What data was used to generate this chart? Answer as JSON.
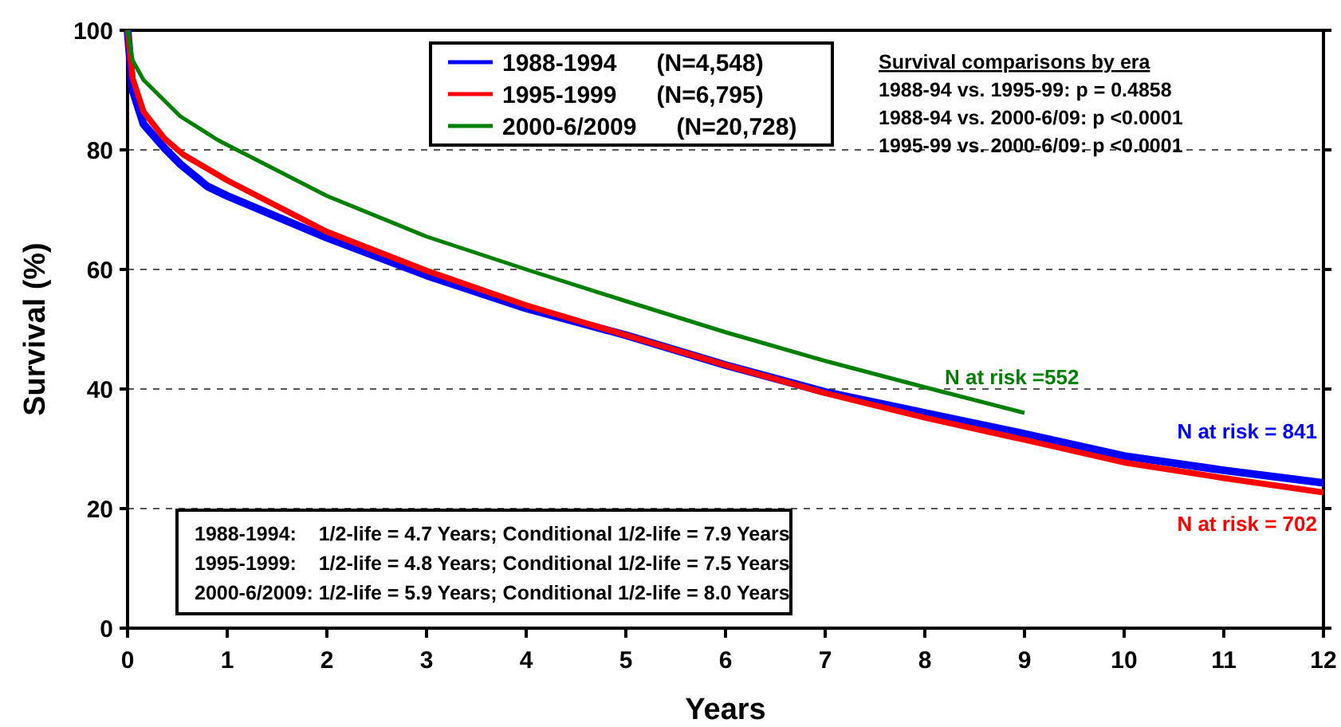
{
  "chart_data": {
    "type": "line",
    "xlabel": "Years",
    "ylabel": "Survival (%)",
    "xlim": [
      0,
      12
    ],
    "xticks": [
      0,
      1,
      2,
      3,
      4,
      5,
      6,
      7,
      8,
      9,
      10,
      11,
      12
    ],
    "ylim": [
      0,
      100
    ],
    "yticks": [
      0,
      20,
      40,
      60,
      80,
      100
    ],
    "grid": "y",
    "legend": "top",
    "line_style": "solid",
    "series": [
      {
        "name": "1988-1994      (N=4,548)",
        "color": "#0000ff",
        "x": [
          0,
          0.05,
          0.16,
          0.37,
          0.53,
          0.8,
          1,
          2,
          3,
          4,
          5,
          6,
          7,
          8,
          9,
          10,
          11,
          12
        ],
        "values": [
          100,
          90,
          84.3,
          80.3,
          77.6,
          73.9,
          72.3,
          65.3,
          59,
          53.5,
          49,
          44,
          39.5,
          36,
          32.5,
          28.8,
          26.4,
          24.3
        ]
      },
      {
        "name": "1995-1999      (N=6,795)",
        "color": "#ff0000",
        "x": [
          0,
          0.05,
          0.16,
          0.37,
          0.56,
          1,
          2,
          3,
          4,
          5,
          6,
          7,
          8,
          9,
          10,
          11,
          12
        ],
        "values": [
          100,
          92,
          86.4,
          81.9,
          79.2,
          74.9,
          66.3,
          59.8,
          54,
          49,
          44,
          39.3,
          35.2,
          31.5,
          27.7,
          25.1,
          22.7
        ]
      },
      {
        "name": "2000-6/2009    (N=20,728)",
        "color": "#008000",
        "x": [
          0,
          0.05,
          0.16,
          0.53,
          0.91,
          2,
          3,
          4,
          5,
          6,
          7,
          8,
          9
        ],
        "values": [
          100,
          95,
          91.7,
          85.6,
          81.6,
          72.3,
          65.5,
          60,
          54.7,
          49.5,
          44.7,
          40.3,
          36
        ]
      }
    ],
    "annotations": [
      "Survival comparisons by era",
      "1988-94 vs. 1995-99: p = 0.4858",
      "1988-94 vs. 2000-6/09: p <0.0001",
      "1995-99 vs. 2000-6/09: p <0.0001",
      "1988-1994:    1/2-life = 4.7 Years; Conditional 1/2-life = 7.9 Years",
      "1995-1999:    1/2-life = 4.8 Years; Conditional 1/2-life = 7.5 Years",
      "2000-6/2009: 1/2-life = 5.9 Years; Conditional 1/2-life = 8.0 Years",
      "N at risk = 841",
      "N at risk = 702",
      "N at risk =552"
    ]
  }
}
